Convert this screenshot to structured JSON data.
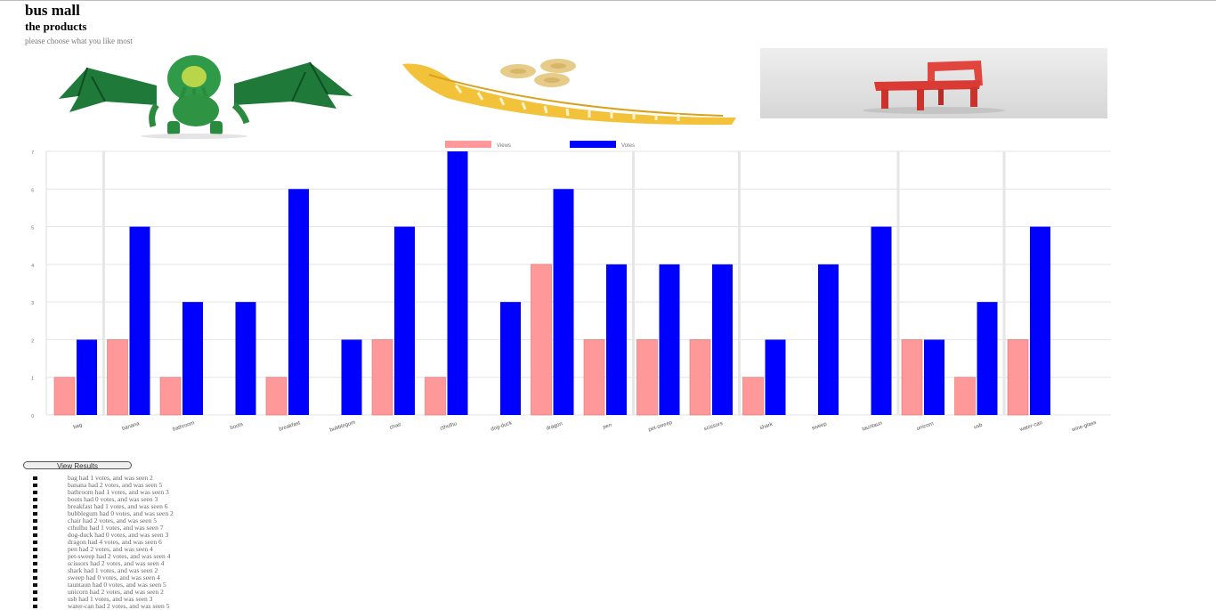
{
  "header": {
    "title": "bus mall",
    "subtitle": "the products",
    "instruction": "please choose what you like most"
  },
  "products": [
    {
      "name": "cthulhu",
      "icon": "cthulhu-figure-image"
    },
    {
      "name": "banana",
      "icon": "banana-slicer-image"
    },
    {
      "name": "chair",
      "icon": "red-chair-image"
    }
  ],
  "chart_data": {
    "type": "bar",
    "legend": [
      "Views",
      "Votes"
    ],
    "legend_position": "top-center",
    "grid": true,
    "ylim": [
      0,
      7
    ],
    "yticks": [
      "0",
      "1",
      "2",
      "3",
      "4",
      "5",
      "6",
      "7"
    ],
    "categories": [
      "bag",
      "banana",
      "bathroom",
      "boots",
      "breakfast",
      "bubblegum",
      "chair",
      "cthulhu",
      "dog-duck",
      "dragon",
      "pen",
      "pet-sweep",
      "scissors",
      "shark",
      "sweep",
      "tauntaun",
      "unicorn",
      "usb",
      "water-can",
      "wine-glass"
    ],
    "series": [
      {
        "name": "Views",
        "color": "#ff9999",
        "values": [
          1,
          2,
          1,
          0,
          1,
          0,
          2,
          1,
          0,
          4,
          2,
          2,
          2,
          1,
          0,
          0,
          2,
          1,
          2,
          0
        ]
      },
      {
        "name": "Votes",
        "color": "#0000ff",
        "values": [
          2,
          5,
          3,
          3,
          6,
          2,
          5,
          7,
          3,
          6,
          4,
          4,
          4,
          2,
          4,
          5,
          2,
          3,
          5,
          0
        ]
      }
    ]
  },
  "view_results_label": "View Results",
  "results": [
    "bag had 1 votes, and was seen 2",
    "banana had 2 votes, and was seen 5",
    "bathroom had 1 votes, and was seen 3",
    "boots had 0 votes, and was seen 3",
    "breakfast had 1 votes, and was seen 6",
    "bubblegum had 0 votes, and was seen 2",
    "chair had 2 votes, and was seen 5",
    "cthulhu had 1 votes, and was seen 7",
    "dog-duck had 0 votes, and was seen 3",
    "dragon had 4 votes, and was seen 6",
    "pen had 2 votes, and was seen 4",
    "pet-sweep had 2 votes, and was seen 4",
    "scissors had 2 votes, and was seen 4",
    "shark had 1 votes, and was seen 2",
    "sweep had 0 votes, and was seen 4",
    "tauntaun had 0 votes, and was seen 5",
    "unicorn had 2 votes, and was seen 2",
    "usb had 1 votes, and was seen 3",
    "water-can had 2 votes, and was seen 5"
  ]
}
